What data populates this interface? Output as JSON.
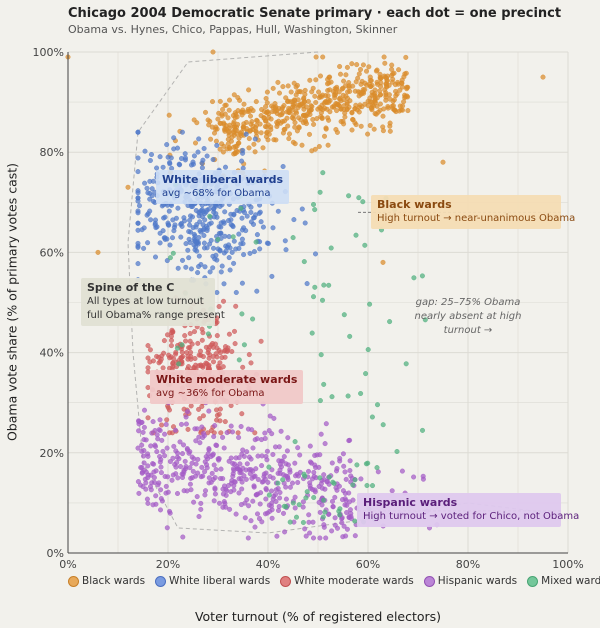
{
  "chart_data": {
    "type": "scatter",
    "title": "Chicago 2004 Democratic Senate primary  ·  each dot = one precinct",
    "subtitle": "Obama vs. Hynes, Chico, Pappas, Hull, Washington, Skinner",
    "xlabel": "Voter turnout (% of registered electors)",
    "ylabel": "Obama vote share (% of primary votes cast)",
    "xlim": [
      0,
      100
    ],
    "ylim": [
      0,
      100
    ],
    "xticks": [
      "0%",
      "20%",
      "40%",
      "60%",
      "80%",
      "100%"
    ],
    "yticks": [
      "0%",
      "20%",
      "40%",
      "60%",
      "80%",
      "100%"
    ],
    "grid": true,
    "legend_position": "bottom",
    "series": [
      {
        "name": "Black wards",
        "color": "#d98c2b",
        "cluster": {
          "x_range": [
            28,
            68
          ],
          "y_range": [
            82,
            97
          ],
          "approx_points": 560,
          "outliers": [
            [
              0,
              99
            ],
            [
              12,
              73
            ],
            [
              6,
              60
            ],
            [
              29,
              100
            ],
            [
              63,
              58
            ],
            [
              75,
              78
            ],
            [
              95,
              95
            ]
          ]
        }
      },
      {
        "name": "White liberal wards",
        "color": "#4f79c9",
        "cluster": {
          "x_range": [
            14,
            50
          ],
          "y_range": [
            52,
            84
          ],
          "mean_y": 68,
          "approx_points": 420
        }
      },
      {
        "name": "White moderate wards",
        "color": "#cf5a5a",
        "cluster": {
          "x_range": [
            16,
            40
          ],
          "y_range": [
            24,
            52
          ],
          "mean_y": 36,
          "approx_points": 300
        }
      },
      {
        "name": "Hispanic wards",
        "color": "#a35bc6",
        "cluster": {
          "x_range": [
            14,
            58
          ],
          "y_range": [
            3,
            30
          ],
          "approx_points": 520
        }
      },
      {
        "name": "Mixed wards",
        "color": "#4fb07e",
        "cluster": {
          "x_range": [
            18,
            72
          ],
          "y_range": [
            6,
            78
          ],
          "approx_points": 110
        }
      }
    ],
    "annotations": [
      {
        "key": "liberal",
        "title": "White liberal wards",
        "body": "avg ∼68% for Obama"
      },
      {
        "key": "black",
        "title": "Black wards",
        "body": "High turnout → near-unanimous Obama"
      },
      {
        "key": "spine",
        "title": "Spine of the C",
        "body": "All types at low turnout",
        "body2": "full Obama% range present"
      },
      {
        "key": "moderate",
        "title": "White moderate wards",
        "body": "avg ∼36% for Obama"
      },
      {
        "key": "hispanic",
        "title": "Hispanic wards",
        "body": "High turnout → voted for Chico, not Obama"
      },
      {
        "key": "gap",
        "body": "gap: 25–75% Obama nearly absent at high turnout →"
      }
    ]
  }
}
